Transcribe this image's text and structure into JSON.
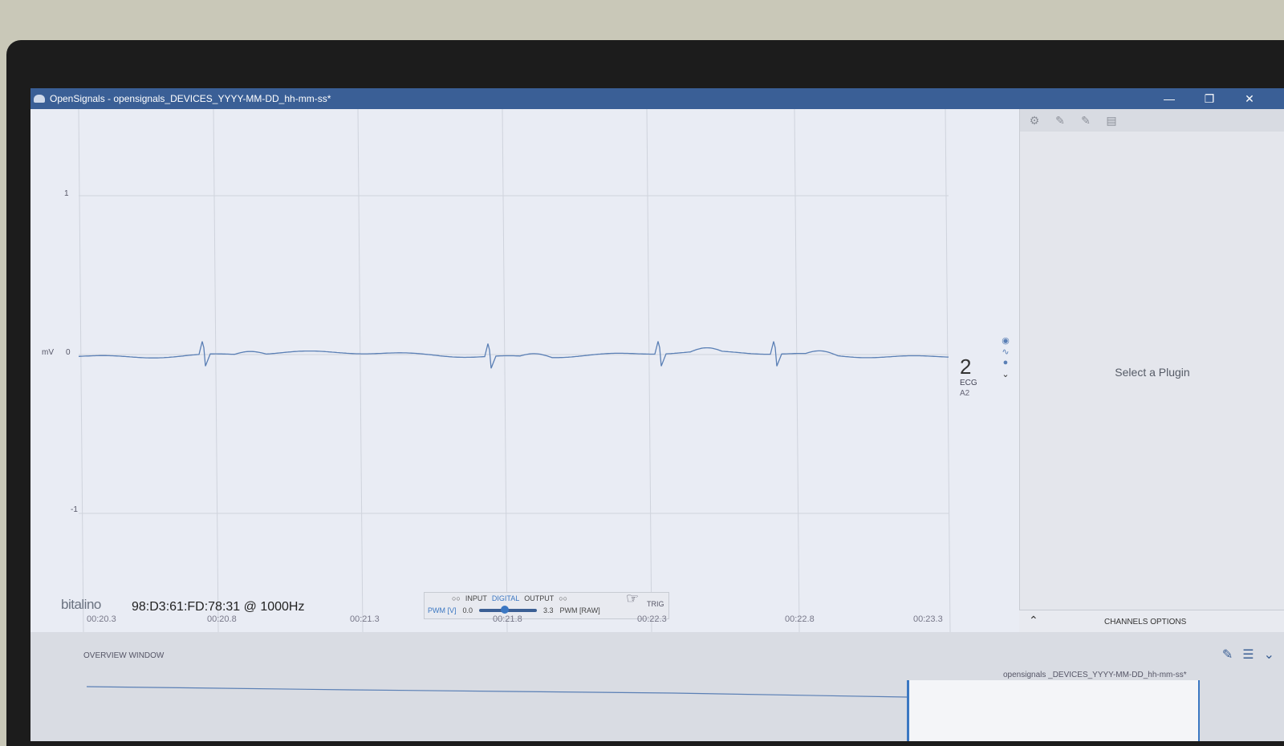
{
  "window": {
    "title": "OpenSignals - opensignals_DEVICES_YYYY-MM-DD_hh-mm-ss*",
    "minimize": "—",
    "restore": "❐",
    "close": "✕"
  },
  "plot": {
    "unit_label": "mV",
    "y_ticks": [
      "1",
      "0",
      "-1"
    ],
    "x_ticks": [
      "00:20.3",
      "00:20.8",
      "00:21.3",
      "00:21.8",
      "00:22.3",
      "00:22.8",
      "00:23.3"
    ],
    "signal_color": "#5a7fb5"
  },
  "channel": {
    "number": "2",
    "type": "ECG",
    "port": "A2"
  },
  "toolbar": {
    "logo_text": "bitalino",
    "device": "98:D3:61:FD:78:31 @ 1000Hz",
    "io_input": "INPUT",
    "io_digital": "DIGITAL",
    "io_output": "OUTPUT",
    "pwm_label": "PWM [V]",
    "pwm_min": "0.0",
    "pwm_max": "3.3",
    "pwm_raw": "PWM [RAW]",
    "trig": "TRIG",
    "pwm_level": 0.45
  },
  "side_panel": {
    "placeholder": "Select a Plugin",
    "channels_options": "CHANNELS OPTIONS"
  },
  "overview": {
    "title": "OVERVIEW WINDOW",
    "file_label": "opensignals _DEVICES_YYYY-MM-DD_hh-mm-ss*"
  },
  "chart_data": {
    "type": "line",
    "ylabel": "mV",
    "ylim": [
      -1,
      1
    ],
    "x": [
      "00:20.3",
      "00:20.8",
      "00:21.3",
      "00:21.8",
      "00:22.3",
      "00:22.8",
      "00:23.3"
    ],
    "series": [
      {
        "values": [
          0.0,
          0.01,
          -0.02,
          0.03,
          -0.03,
          0.02,
          0.01
        ]
      }
    ],
    "grid": true
  }
}
